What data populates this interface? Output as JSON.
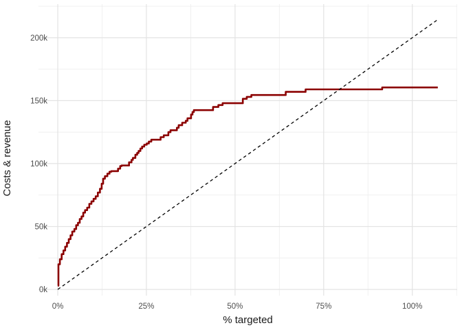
{
  "chart_data": {
    "type": "line",
    "title": "",
    "xlabel": "% targeted",
    "ylabel": "Costs & revenue",
    "x_unit": "percent",
    "y_unit": "thousands",
    "xlim": [
      -5.6,
      112.8
    ],
    "ylim": [
      -10,
      226
    ],
    "grid": "major and minor gridlines, light gray on white, no panel border",
    "legend_position": "none",
    "x_ticks": [
      {
        "v": 0,
        "label": "0%"
      },
      {
        "v": 25,
        "label": "25%"
      },
      {
        "v": 50,
        "label": "50%"
      },
      {
        "v": 75,
        "label": "75%"
      },
      {
        "v": 100,
        "label": "100%"
      }
    ],
    "x_minor_ticks": [
      12.5,
      37.5,
      62.5,
      87.5,
      112.5
    ],
    "y_ticks": [
      {
        "v": 0,
        "label": "0k"
      },
      {
        "v": 50,
        "label": "50k"
      },
      {
        "v": 100,
        "label": "100k"
      },
      {
        "v": 150,
        "label": "150k"
      },
      {
        "v": 200,
        "label": "200k"
      }
    ],
    "y_minor_ticks": [
      25,
      75,
      125,
      175,
      225
    ],
    "series": [
      {
        "name": "revenue-step-curve",
        "interpolation": "step-hv",
        "color": "#8B0000",
        "stroke_width": 2.6,
        "dash": "solid",
        "points": [
          [
            0,
            3
          ],
          [
            0.2,
            20
          ],
          [
            0.6,
            24
          ],
          [
            1.1,
            28
          ],
          [
            1.6,
            31
          ],
          [
            2.1,
            34
          ],
          [
            2.6,
            37
          ],
          [
            3.1,
            40
          ],
          [
            3.6,
            43
          ],
          [
            4.1,
            46
          ],
          [
            4.7,
            48
          ],
          [
            5.2,
            51
          ],
          [
            5.7,
            53
          ],
          [
            6.2,
            56
          ],
          [
            6.7,
            58
          ],
          [
            7.2,
            61
          ],
          [
            7.7,
            63
          ],
          [
            8.3,
            65
          ],
          [
            8.9,
            68
          ],
          [
            9.5,
            70
          ],
          [
            10.1,
            72
          ],
          [
            10.7,
            74
          ],
          [
            11.3,
            77
          ],
          [
            11.9,
            80
          ],
          [
            12.4,
            84
          ],
          [
            12.8,
            88
          ],
          [
            13.3,
            90
          ],
          [
            14.0,
            92
          ],
          [
            14.6,
            93.5
          ],
          [
            15.1,
            94
          ],
          [
            16.7,
            94
          ],
          [
            17.0,
            96
          ],
          [
            17.6,
            98
          ],
          [
            18.0,
            98.5
          ],
          [
            19.6,
            98.5
          ],
          [
            20.1,
            101
          ],
          [
            20.8,
            103
          ],
          [
            21.2,
            104.5
          ],
          [
            21.9,
            107
          ],
          [
            22.4,
            108.5
          ],
          [
            22.8,
            110
          ],
          [
            23.3,
            112
          ],
          [
            23.8,
            113.5
          ],
          [
            24.4,
            115
          ],
          [
            25.1,
            116
          ],
          [
            25.7,
            117.5
          ],
          [
            26.4,
            119
          ],
          [
            28.3,
            119
          ],
          [
            29.0,
            121
          ],
          [
            29.9,
            122.5
          ],
          [
            31.2,
            125
          ],
          [
            31.8,
            126.5
          ],
          [
            33.2,
            126.5
          ],
          [
            33.6,
            128.5
          ],
          [
            34.1,
            130.5
          ],
          [
            35.1,
            132.5
          ],
          [
            36.1,
            134
          ],
          [
            36.6,
            136
          ],
          [
            37.6,
            139
          ],
          [
            38.0,
            141
          ],
          [
            38.4,
            142.5
          ],
          [
            43.2,
            142.5
          ],
          [
            43.8,
            145
          ],
          [
            45.3,
            146.5
          ],
          [
            46.5,
            148
          ],
          [
            51.6,
            148
          ],
          [
            52.2,
            151.5
          ],
          [
            53.3,
            153
          ],
          [
            54.6,
            154.5
          ],
          [
            63.8,
            154.5
          ],
          [
            64.3,
            157
          ],
          [
            69.4,
            157
          ],
          [
            69.9,
            159
          ],
          [
            90.9,
            159
          ],
          [
            91.5,
            160.5
          ],
          [
            107.2,
            160.5
          ]
        ]
      },
      {
        "name": "costs-diagonal-line",
        "interpolation": "linear",
        "color": "#000000",
        "stroke_width": 1.3,
        "dash": "dashed",
        "points": [
          [
            0,
            0
          ],
          [
            107.2,
            214.4
          ]
        ]
      }
    ],
    "style": {
      "background": "#FFFFFF",
      "grid_major_color": "#E3E3E3",
      "grid_minor_color": "#EDEDED",
      "tick_label_color": "#4D4D4D",
      "axis_title_color": "#1A1A1A",
      "revenue_color": "#8B0000",
      "costs_color": "#000000"
    }
  }
}
